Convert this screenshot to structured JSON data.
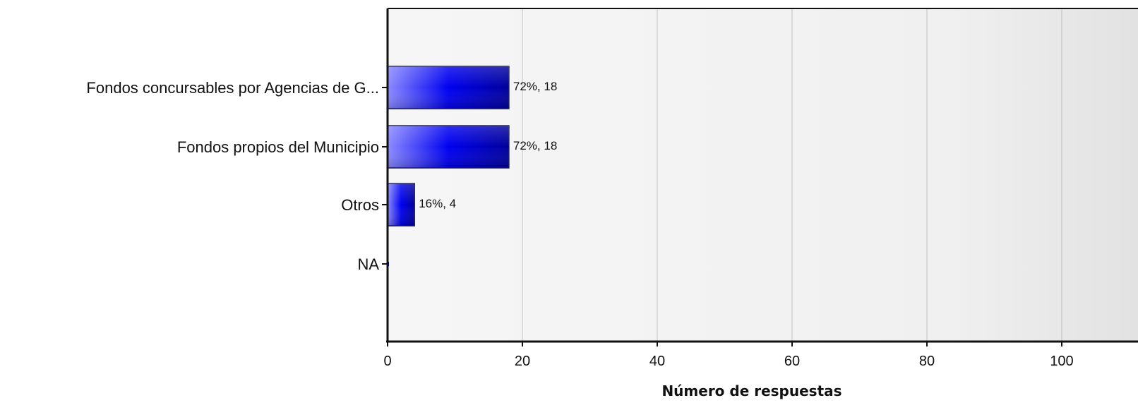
{
  "chart_data": {
    "type": "bar",
    "orientation": "horizontal",
    "title": "",
    "xlabel": "Número de respuestas",
    "ylabel": "",
    "xlim": [
      0,
      110
    ],
    "xticks": [
      0,
      20,
      40,
      60,
      80,
      100
    ],
    "grid": true,
    "legend": "none",
    "categories": [
      "Fondos concursables por Agencias de G...",
      "Fondos propios del Municipio",
      "Otros",
      "NA"
    ],
    "values": [
      18,
      18,
      4,
      0
    ],
    "percents": [
      72,
      72,
      16,
      0
    ],
    "data_labels": [
      "72%, 18",
      "72%, 18",
      "16%, 4",
      ""
    ],
    "colors": {
      "bar_light": "#8a8aff",
      "bar_mid": "#0000f0",
      "bar_dark": "#00009a",
      "plot_bg": "#f2f2f2",
      "grid": "#c0c0c0"
    }
  }
}
